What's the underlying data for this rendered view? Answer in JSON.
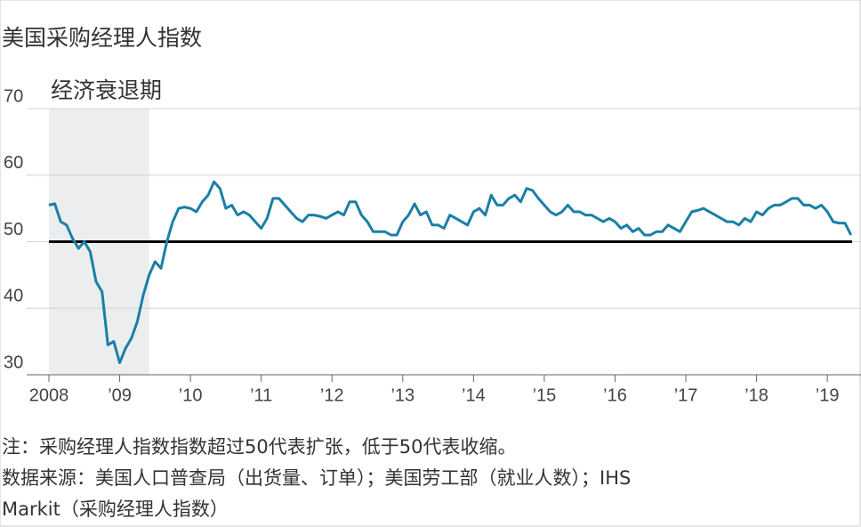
{
  "chart_data": {
    "type": "line",
    "title": "美国采购经理人指数",
    "categories": [
      "2008",
      null,
      null,
      null,
      null,
      null,
      null,
      null,
      null,
      null,
      null,
      null,
      "’09",
      null,
      null,
      null,
      null,
      null,
      null,
      null,
      null,
      null,
      null,
      null,
      "’10",
      null,
      null,
      null,
      null,
      null,
      null,
      null,
      null,
      null,
      null,
      null,
      "’11",
      null,
      null,
      null,
      null,
      null,
      null,
      null,
      null,
      null,
      null,
      null,
      "’12",
      null,
      null,
      null,
      null,
      null,
      null,
      null,
      null,
      null,
      null,
      null,
      "’13",
      null,
      null,
      null,
      null,
      null,
      null,
      null,
      null,
      null,
      null,
      null,
      "’14",
      null,
      null,
      null,
      null,
      null,
      null,
      null,
      null,
      null,
      null,
      null,
      "’15",
      null,
      null,
      null,
      null,
      null,
      null,
      null,
      null,
      null,
      null,
      null,
      "’16",
      null,
      null,
      null,
      null,
      null,
      null,
      null,
      null,
      null,
      null,
      null,
      "’17",
      null,
      null,
      null,
      null,
      null,
      null,
      null,
      null,
      null,
      null,
      null,
      "’18",
      null,
      null,
      null,
      null,
      null,
      null,
      null,
      null,
      null,
      null,
      null,
      "’19",
      null,
      null,
      null,
      null
    ],
    "series": [
      {
        "name": "采购经理人指数",
        "color": "#1a7fa6",
        "values": [
          55.5,
          55.7,
          53,
          52.5,
          50.5,
          49,
          50,
          48.5,
          44,
          42.5,
          34.5,
          35,
          31.8,
          34,
          35.5,
          38,
          42,
          45,
          47,
          46,
          50,
          53,
          55,
          55.2,
          55,
          54.5,
          56,
          57,
          59,
          58,
          55,
          55.5,
          54,
          54.5,
          54,
          53,
          52,
          53.5,
          56.5,
          56.5,
          55.5,
          54.5,
          53.5,
          53,
          54,
          54,
          53.8,
          53.5,
          54,
          54.5,
          54,
          56,
          56,
          54,
          53,
          51.5,
          51.5,
          51.5,
          51,
          51,
          53,
          54,
          55.7,
          54,
          54.5,
          52.5,
          52.5,
          52,
          54,
          53.5,
          53,
          52.5,
          54.5,
          55,
          54,
          57,
          55.5,
          55.5,
          56.5,
          57,
          56,
          58,
          57.7,
          56.5,
          55.5,
          54.5,
          54,
          54.5,
          55.5,
          54.5,
          54.5,
          54,
          54,
          53.5,
          53,
          53.5,
          53,
          52,
          52.5,
          51.5,
          52,
          51,
          51,
          51.5,
          51.5,
          52.5,
          52,
          51.5,
          53,
          54.5,
          54.7,
          55,
          54.5,
          54,
          53.5,
          53,
          53,
          52.5,
          53.5,
          53,
          54.5,
          54,
          55,
          55.5,
          55.5,
          56,
          56.5,
          56.5,
          55.5,
          55.5,
          55,
          55.5,
          54.5,
          53,
          52.8,
          52.8,
          51
        ]
      }
    ],
    "ylim": [
      30,
      70
    ],
    "yticks": [
      30,
      40,
      50,
      60,
      70
    ],
    "grid": true,
    "reference_line": 50,
    "recession": {
      "label": "经济衰退期",
      "range": [
        0,
        17
      ]
    },
    "notes": [
      "注：采购经理人指数指数超过50代表扩张，低于50代表收缩。",
      "数据来源：美国人口普查局（出货量、订单）；美国劳工部（就业人数）；IHS",
      "Markit（采购经理人指数）"
    ]
  }
}
